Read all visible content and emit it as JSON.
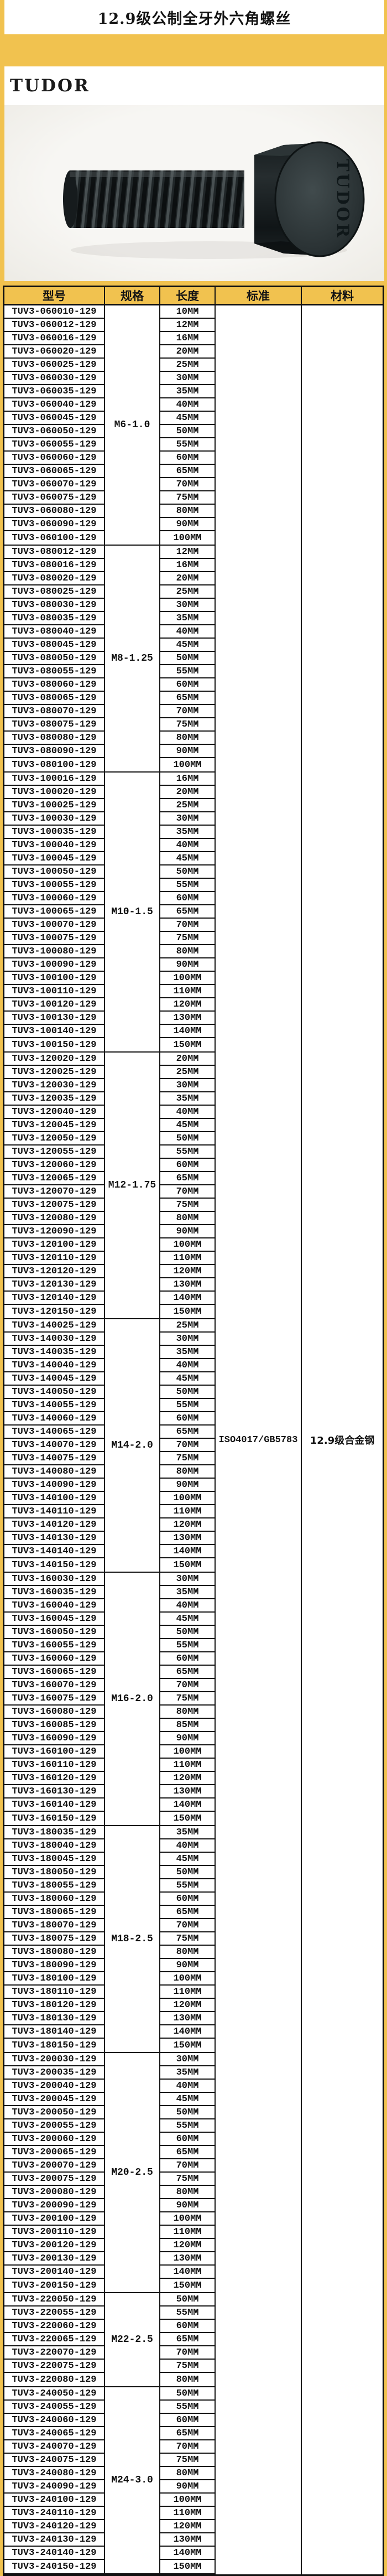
{
  "page": {
    "title": "12.9级公制全牙外六角螺丝",
    "brand": "TUDOR",
    "bolt_engraving": "TUDOR"
  },
  "colors": {
    "page_background": "#f1c24f",
    "header_background": "#f1c24f",
    "table_border": "#141414",
    "cell_background": "#ffffff",
    "bolt_body": "#22282a"
  },
  "table": {
    "headers": [
      "型号",
      "规格",
      "长度",
      "标准",
      "材料"
    ],
    "standard": "ISO4017/GB5783",
    "material": "12.9级合金钢",
    "groups": [
      {
        "spec": "M6-1.0",
        "rows": [
          [
            "TUV3-060010-129",
            "10MM"
          ],
          [
            "TUV3-060012-129",
            "12MM"
          ],
          [
            "TUV3-060016-129",
            "16MM"
          ],
          [
            "TUV3-060020-129",
            "20MM"
          ],
          [
            "TUV3-060025-129",
            "25MM"
          ],
          [
            "TUV3-060030-129",
            "30MM"
          ],
          [
            "TUV3-060035-129",
            "35MM"
          ],
          [
            "TUV3-060040-129",
            "40MM"
          ],
          [
            "TUV3-060045-129",
            "45MM"
          ],
          [
            "TUV3-060050-129",
            "50MM"
          ],
          [
            "TUV3-060055-129",
            "55MM"
          ],
          [
            "TUV3-060060-129",
            "60MM"
          ],
          [
            "TUV3-060065-129",
            "65MM"
          ],
          [
            "TUV3-060070-129",
            "70MM"
          ],
          [
            "TUV3-060075-129",
            "75MM"
          ],
          [
            "TUV3-060080-129",
            "80MM"
          ],
          [
            "TUV3-060090-129",
            "90MM"
          ],
          [
            "TUV3-060100-129",
            "100MM"
          ]
        ]
      },
      {
        "spec": "M8-1.25",
        "rows": [
          [
            "TUV3-080012-129",
            "12MM"
          ],
          [
            "TUV3-080016-129",
            "16MM"
          ],
          [
            "TUV3-080020-129",
            "20MM"
          ],
          [
            "TUV3-080025-129",
            "25MM"
          ],
          [
            "TUV3-080030-129",
            "30MM"
          ],
          [
            "TUV3-080035-129",
            "35MM"
          ],
          [
            "TUV3-080040-129",
            "40MM"
          ],
          [
            "TUV3-080045-129",
            "45MM"
          ],
          [
            "TUV3-080050-129",
            "50MM"
          ],
          [
            "TUV3-080055-129",
            "55MM"
          ],
          [
            "TUV3-080060-129",
            "60MM"
          ],
          [
            "TUV3-080065-129",
            "65MM"
          ],
          [
            "TUV3-080070-129",
            "70MM"
          ],
          [
            "TUV3-080075-129",
            "75MM"
          ],
          [
            "TUV3-080080-129",
            "80MM"
          ],
          [
            "TUV3-080090-129",
            "90MM"
          ],
          [
            "TUV3-080100-129",
            "100MM"
          ]
        ]
      },
      {
        "spec": "M10-1.5",
        "rows": [
          [
            "TUV3-100016-129",
            "16MM"
          ],
          [
            "TUV3-100020-129",
            "20MM"
          ],
          [
            "TUV3-100025-129",
            "25MM"
          ],
          [
            "TUV3-100030-129",
            "30MM"
          ],
          [
            "TUV3-100035-129",
            "35MM"
          ],
          [
            "TUV3-100040-129",
            "40MM"
          ],
          [
            "TUV3-100045-129",
            "45MM"
          ],
          [
            "TUV3-100050-129",
            "50MM"
          ],
          [
            "TUV3-100055-129",
            "55MM"
          ],
          [
            "TUV3-100060-129",
            "60MM"
          ],
          [
            "TUV3-100065-129",
            "65MM"
          ],
          [
            "TUV3-100070-129",
            "70MM"
          ],
          [
            "TUV3-100075-129",
            "75MM"
          ],
          [
            "TUV3-100080-129",
            "80MM"
          ],
          [
            "TUV3-100090-129",
            "90MM"
          ],
          [
            "TUV3-100100-129",
            "100MM"
          ],
          [
            "TUV3-100110-129",
            "110MM"
          ],
          [
            "TUV3-100120-129",
            "120MM"
          ],
          [
            "TUV3-100130-129",
            "130MM"
          ],
          [
            "TUV3-100140-129",
            "140MM"
          ],
          [
            "TUV3-100150-129",
            "150MM"
          ]
        ]
      },
      {
        "spec": "M12-1.75",
        "rows": [
          [
            "TUV3-120020-129",
            "20MM"
          ],
          [
            "TUV3-120025-129",
            "25MM"
          ],
          [
            "TUV3-120030-129",
            "30MM"
          ],
          [
            "TUV3-120035-129",
            "35MM"
          ],
          [
            "TUV3-120040-129",
            "40MM"
          ],
          [
            "TUV3-120045-129",
            "45MM"
          ],
          [
            "TUV3-120050-129",
            "50MM"
          ],
          [
            "TUV3-120055-129",
            "55MM"
          ],
          [
            "TUV3-120060-129",
            "60MM"
          ],
          [
            "TUV3-120065-129",
            "65MM"
          ],
          [
            "TUV3-120070-129",
            "70MM"
          ],
          [
            "TUV3-120075-129",
            "75MM"
          ],
          [
            "TUV3-120080-129",
            "80MM"
          ],
          [
            "TUV3-120090-129",
            "90MM"
          ],
          [
            "TUV3-120100-129",
            "100MM"
          ],
          [
            "TUV3-120110-129",
            "110MM"
          ],
          [
            "TUV3-120120-129",
            "120MM"
          ],
          [
            "TUV3-120130-129",
            "130MM"
          ],
          [
            "TUV3-120140-129",
            "140MM"
          ],
          [
            "TUV3-120150-129",
            "150MM"
          ]
        ]
      },
      {
        "spec": "M14-2.0",
        "rows": [
          [
            "TUV3-140025-129",
            "25MM"
          ],
          [
            "TUV3-140030-129",
            "30MM"
          ],
          [
            "TUV3-140035-129",
            "35MM"
          ],
          [
            "TUV3-140040-129",
            "40MM"
          ],
          [
            "TUV3-140045-129",
            "45MM"
          ],
          [
            "TUV3-140050-129",
            "50MM"
          ],
          [
            "TUV3-140055-129",
            "55MM"
          ],
          [
            "TUV3-140060-129",
            "60MM"
          ],
          [
            "TUV3-140065-129",
            "65MM"
          ],
          [
            "TUV3-140070-129",
            "70MM"
          ],
          [
            "TUV3-140075-129",
            "75MM"
          ],
          [
            "TUV3-140080-129",
            "80MM"
          ],
          [
            "TUV3-140090-129",
            "90MM"
          ],
          [
            "TUV3-140100-129",
            "100MM"
          ],
          [
            "TUV3-140110-129",
            "110MM"
          ],
          [
            "TUV3-140120-129",
            "120MM"
          ],
          [
            "TUV3-140130-129",
            "130MM"
          ],
          [
            "TUV3-140140-129",
            "140MM"
          ],
          [
            "TUV3-140150-129",
            "150MM"
          ]
        ]
      },
      {
        "spec": "M16-2.0",
        "rows": [
          [
            "TUV3-160030-129",
            "30MM"
          ],
          [
            "TUV3-160035-129",
            "35MM"
          ],
          [
            "TUV3-160040-129",
            "40MM"
          ],
          [
            "TUV3-160045-129",
            "45MM"
          ],
          [
            "TUV3-160050-129",
            "50MM"
          ],
          [
            "TUV3-160055-129",
            "55MM"
          ],
          [
            "TUV3-160060-129",
            "60MM"
          ],
          [
            "TUV3-160065-129",
            "65MM"
          ],
          [
            "TUV3-160070-129",
            "70MM"
          ],
          [
            "TUV3-160075-129",
            "75MM"
          ],
          [
            "TUV3-160080-129",
            "80MM"
          ],
          [
            "TUV3-160085-129",
            "85MM"
          ],
          [
            "TUV3-160090-129",
            "90MM"
          ],
          [
            "TUV3-160100-129",
            "100MM"
          ],
          [
            "TUV3-160110-129",
            "110MM"
          ],
          [
            "TUV3-160120-129",
            "120MM"
          ],
          [
            "TUV3-160130-129",
            "130MM"
          ],
          [
            "TUV3-160140-129",
            "140MM"
          ],
          [
            "TUV3-160150-129",
            "150MM"
          ]
        ]
      },
      {
        "spec": "M18-2.5",
        "rows": [
          [
            "TUV3-180035-129",
            "35MM"
          ],
          [
            "TUV3-180040-129",
            "40MM"
          ],
          [
            "TUV3-180045-129",
            "45MM"
          ],
          [
            "TUV3-180050-129",
            "50MM"
          ],
          [
            "TUV3-180055-129",
            "55MM"
          ],
          [
            "TUV3-180060-129",
            "60MM"
          ],
          [
            "TUV3-180065-129",
            "65MM"
          ],
          [
            "TUV3-180070-129",
            "70MM"
          ],
          [
            "TUV3-180075-129",
            "75MM"
          ],
          [
            "TUV3-180080-129",
            "80MM"
          ],
          [
            "TUV3-180090-129",
            "90MM"
          ],
          [
            "TUV3-180100-129",
            "100MM"
          ],
          [
            "TUV3-180110-129",
            "110MM"
          ],
          [
            "TUV3-180120-129",
            "120MM"
          ],
          [
            "TUV3-180130-129",
            "130MM"
          ],
          [
            "TUV3-180140-129",
            "140MM"
          ],
          [
            "TUV3-180150-129",
            "150MM"
          ]
        ]
      },
      {
        "spec": "M20-2.5",
        "rows": [
          [
            "TUV3-200030-129",
            "30MM"
          ],
          [
            "TUV3-200035-129",
            "35MM"
          ],
          [
            "TUV3-200040-129",
            "40MM"
          ],
          [
            "TUV3-200045-129",
            "45MM"
          ],
          [
            "TUV3-200050-129",
            "50MM"
          ],
          [
            "TUV3-200055-129",
            "55MM"
          ],
          [
            "TUV3-200060-129",
            "60MM"
          ],
          [
            "TUV3-200065-129",
            "65MM"
          ],
          [
            "TUV3-200070-129",
            "70MM"
          ],
          [
            "TUV3-200075-129",
            "75MM"
          ],
          [
            "TUV3-200080-129",
            "80MM"
          ],
          [
            "TUV3-200090-129",
            "90MM"
          ],
          [
            "TUV3-200100-129",
            "100MM"
          ],
          [
            "TUV3-200110-129",
            "110MM"
          ],
          [
            "TUV3-200120-129",
            "120MM"
          ],
          [
            "TUV3-200130-129",
            "130MM"
          ],
          [
            "TUV3-200140-129",
            "140MM"
          ],
          [
            "TUV3-200150-129",
            "150MM"
          ]
        ]
      },
      {
        "spec": "M22-2.5",
        "rows": [
          [
            "TUV3-220050-129",
            "50MM"
          ],
          [
            "TUV3-220055-129",
            "55MM"
          ],
          [
            "TUV3-220060-129",
            "60MM"
          ],
          [
            "TUV3-220065-129",
            "65MM"
          ],
          [
            "TUV3-220070-129",
            "70MM"
          ],
          [
            "TUV3-220075-129",
            "75MM"
          ],
          [
            "TUV3-220080-129",
            "80MM"
          ]
        ]
      },
      {
        "spec": "M24-3.0",
        "rows": [
          [
            "TUV3-240050-129",
            "50MM"
          ],
          [
            "TUV3-240055-129",
            "55MM"
          ],
          [
            "TUV3-240060-129",
            "60MM"
          ],
          [
            "TUV3-240065-129",
            "65MM"
          ],
          [
            "TUV3-240070-129",
            "70MM"
          ],
          [
            "TUV3-240075-129",
            "75MM"
          ],
          [
            "TUV3-240080-129",
            "80MM"
          ],
          [
            "TUV3-240090-129",
            "90MM"
          ],
          [
            "TUV3-240100-129",
            "100MM"
          ],
          [
            "TUV3-240110-129",
            "110MM"
          ],
          [
            "TUV3-240120-129",
            "120MM"
          ],
          [
            "TUV3-240130-129",
            "130MM"
          ],
          [
            "TUV3-240140-129",
            "140MM"
          ],
          [
            "TUV3-240150-129",
            "150MM"
          ]
        ]
      }
    ]
  }
}
